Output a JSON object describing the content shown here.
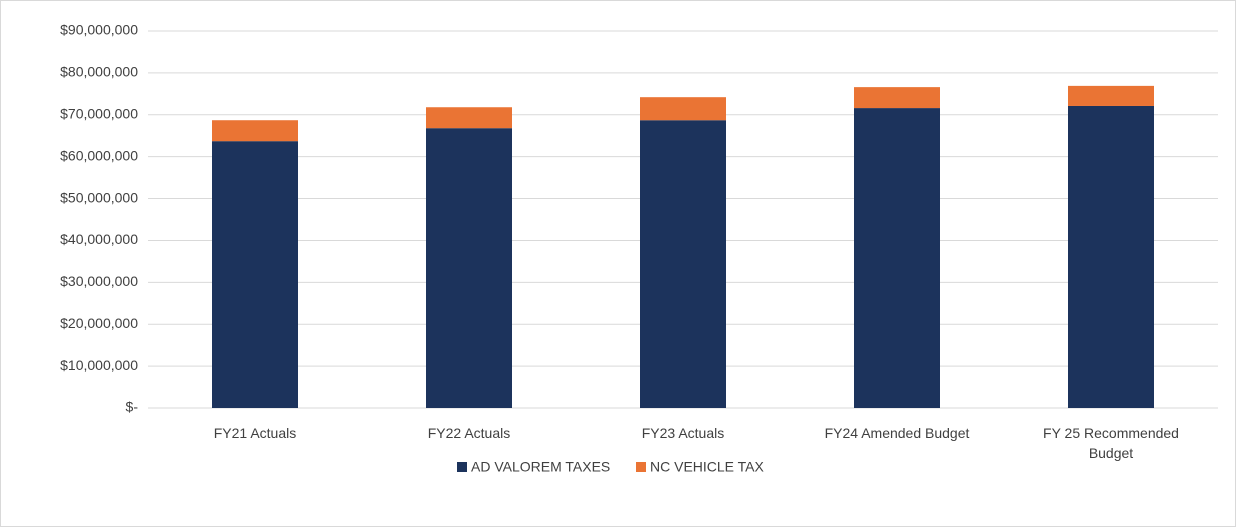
{
  "chart_data": {
    "type": "stacked_bar",
    "categories": [
      "FY21 Actuals",
      "FY22 Actuals",
      "FY23 Actuals",
      "FY24 Amended Budget",
      "FY 25 Recommended Budget"
    ],
    "series": [
      {
        "name": "AD VALOREM TAXES",
        "color": "#1c335c",
        "values": [
          63700000,
          66800000,
          68700000,
          71600000,
          72100000
        ]
      },
      {
        "name": "NC VEHICLE TAX",
        "color": "#ea7434",
        "values": [
          5000000,
          5000000,
          5500000,
          5000000,
          4800000
        ]
      }
    ],
    "ylim": [
      0,
      90000000
    ],
    "yticks": [
      {
        "value": 0,
        "label": "$-"
      },
      {
        "value": 10000000,
        "label": "$10,000,000"
      },
      {
        "value": 20000000,
        "label": "$20,000,000"
      },
      {
        "value": 30000000,
        "label": "$30,000,000"
      },
      {
        "value": 40000000,
        "label": "$40,000,000"
      },
      {
        "value": 50000000,
        "label": "$50,000,000"
      },
      {
        "value": 60000000,
        "label": "$60,000,000"
      },
      {
        "value": 70000000,
        "label": "$70,000,000"
      },
      {
        "value": 80000000,
        "label": "$80,000,000"
      },
      {
        "value": 90000000,
        "label": "$90,000,000"
      }
    ],
    "grid": true,
    "legend": "bottom"
  }
}
